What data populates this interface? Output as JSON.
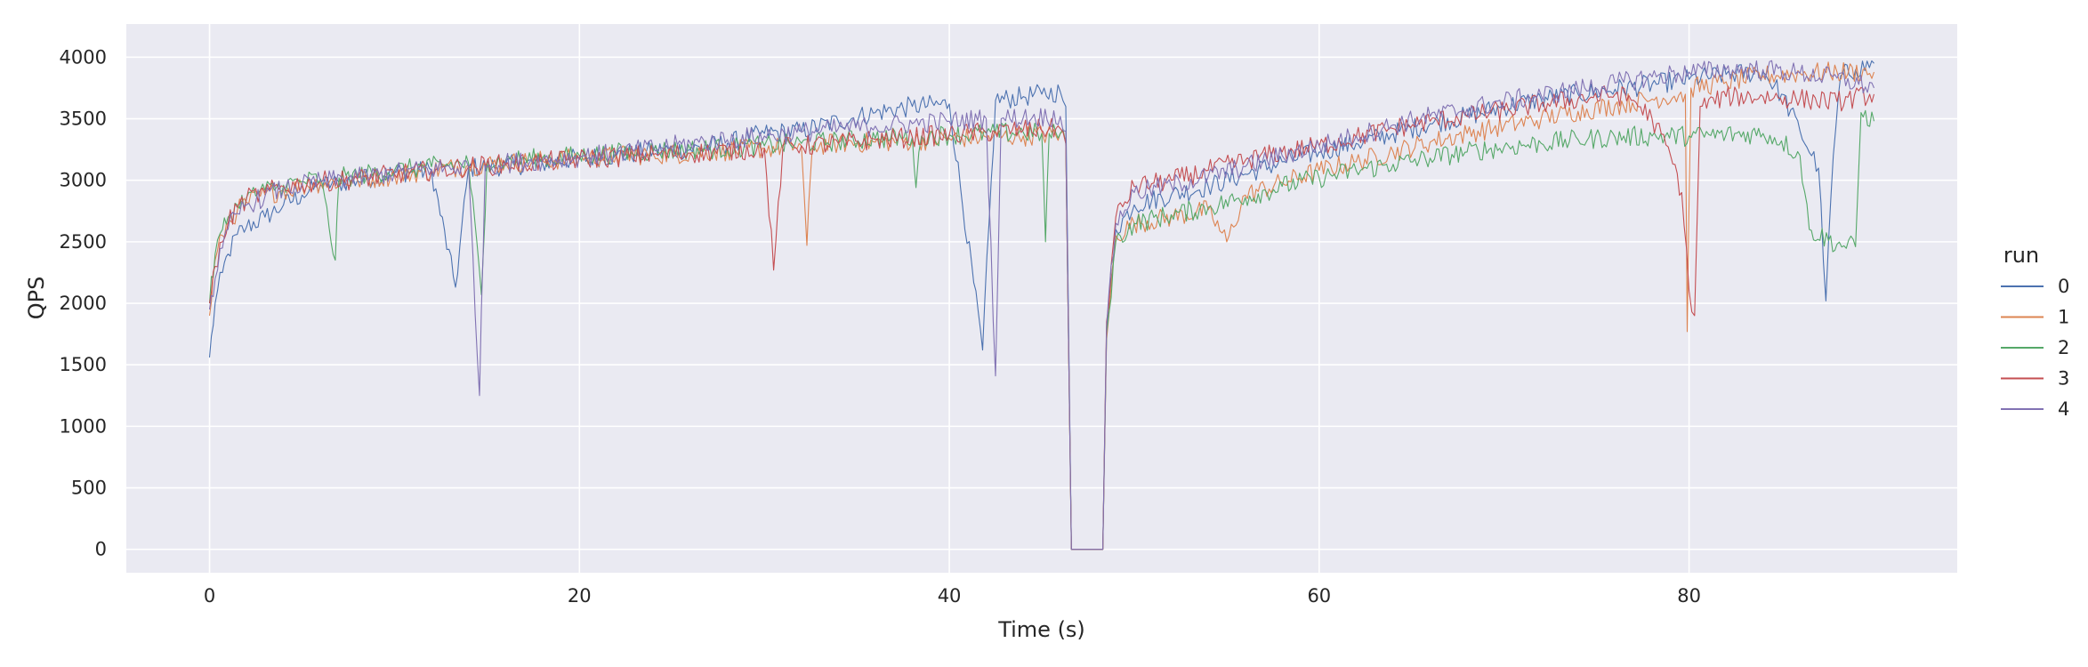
{
  "chart_data": {
    "type": "line",
    "xlabel": "Time (s)",
    "ylabel": "QPS",
    "xlim": [
      -4.5,
      94.5
    ],
    "ylim": [
      -190,
      4270
    ],
    "xticks": [
      0,
      20,
      40,
      60,
      80
    ],
    "yticks": [
      0,
      500,
      1000,
      1500,
      2000,
      2500,
      3000,
      3500,
      4000
    ],
    "grid": true,
    "background": "#eaeaf2",
    "legend": {
      "title": "run",
      "placement": "right"
    },
    "series": [
      {
        "name": "0",
        "color": "#4c72b0",
        "points": [
          [
            0,
            1560
          ],
          [
            0.3,
            2000
          ],
          [
            0.7,
            2250
          ],
          [
            1,
            2400
          ],
          [
            1.5,
            2560
          ],
          [
            2,
            2620
          ],
          [
            3,
            2700
          ],
          [
            4,
            2800
          ],
          [
            5,
            2880
          ],
          [
            6,
            2960
          ],
          [
            7,
            2980
          ],
          [
            8,
            3000
          ],
          [
            10,
            3060
          ],
          [
            12,
            3080
          ],
          [
            13.3,
            2130
          ],
          [
            14,
            3100
          ],
          [
            16,
            3120
          ],
          [
            18,
            3140
          ],
          [
            20,
            3180
          ],
          [
            22,
            3200
          ],
          [
            24,
            3240
          ],
          [
            26,
            3250
          ],
          [
            28,
            3300
          ],
          [
            30,
            3380
          ],
          [
            32,
            3400
          ],
          [
            34,
            3480
          ],
          [
            36,
            3550
          ],
          [
            38,
            3600
          ],
          [
            40,
            3620
          ],
          [
            41.8,
            1620
          ],
          [
            42.5,
            3650
          ],
          [
            44,
            3680
          ],
          [
            45,
            3700
          ],
          [
            46,
            3720
          ],
          [
            46.3,
            3600
          ],
          [
            46.6,
            0
          ],
          [
            48.3,
            0
          ],
          [
            48.5,
            1750
          ],
          [
            49,
            2600
          ],
          [
            50,
            2800
          ],
          [
            52,
            2880
          ],
          [
            54,
            2950
          ],
          [
            56,
            3050
          ],
          [
            58,
            3150
          ],
          [
            60,
            3230
          ],
          [
            62,
            3300
          ],
          [
            64,
            3380
          ],
          [
            66,
            3460
          ],
          [
            68,
            3520
          ],
          [
            70,
            3600
          ],
          [
            72,
            3660
          ],
          [
            74,
            3700
          ],
          [
            76,
            3740
          ],
          [
            78,
            3780
          ],
          [
            80,
            3820
          ],
          [
            82,
            3860
          ],
          [
            84,
            3880
          ],
          [
            85,
            3700
          ],
          [
            86,
            3400
          ],
          [
            87,
            3100
          ],
          [
            87.4,
            2020
          ],
          [
            87.8,
            3200
          ],
          [
            88.2,
            3850
          ],
          [
            89,
            3900
          ],
          [
            90,
            3950
          ]
        ]
      },
      {
        "name": "1",
        "color": "#dd8452",
        "points": [
          [
            0,
            1900
          ],
          [
            0.3,
            2350
          ],
          [
            0.7,
            2550
          ],
          [
            1,
            2650
          ],
          [
            1.5,
            2750
          ],
          [
            2,
            2820
          ],
          [
            3,
            2880
          ],
          [
            4,
            2920
          ],
          [
            5,
            2950
          ],
          [
            6,
            2980
          ],
          [
            8,
            3000
          ],
          [
            10,
            3040
          ],
          [
            12,
            3080
          ],
          [
            14,
            3120
          ],
          [
            16,
            3140
          ],
          [
            18,
            3160
          ],
          [
            20,
            3180
          ],
          [
            22,
            3200
          ],
          [
            24,
            3210
          ],
          [
            26,
            3220
          ],
          [
            28,
            3240
          ],
          [
            30,
            3260
          ],
          [
            32,
            3280
          ],
          [
            32.3,
            2470
          ],
          [
            32.6,
            3280
          ],
          [
            34,
            3300
          ],
          [
            36,
            3310
          ],
          [
            38,
            3320
          ],
          [
            40,
            3340
          ],
          [
            42,
            3350
          ],
          [
            44,
            3360
          ],
          [
            46,
            3380
          ],
          [
            46.3,
            3300
          ],
          [
            46.6,
            0
          ],
          [
            48.3,
            0
          ],
          [
            48.5,
            1700
          ],
          [
            49,
            2550
          ],
          [
            50,
            2650
          ],
          [
            52,
            2700
          ],
          [
            54,
            2760
          ],
          [
            55,
            2500
          ],
          [
            56,
            2880
          ],
          [
            58,
            2980
          ],
          [
            60,
            3080
          ],
          [
            62,
            3150
          ],
          [
            64,
            3230
          ],
          [
            66,
            3310
          ],
          [
            68,
            3380
          ],
          [
            70,
            3440
          ],
          [
            72,
            3500
          ],
          [
            74,
            3560
          ],
          [
            76,
            3610
          ],
          [
            78,
            3660
          ],
          [
            79.8,
            3700
          ],
          [
            79.9,
            1770
          ],
          [
            80.1,
            3750
          ],
          [
            82,
            3800
          ],
          [
            84,
            3850
          ],
          [
            86,
            3870
          ],
          [
            88,
            3880
          ],
          [
            90,
            3880
          ]
        ]
      },
      {
        "name": "2",
        "color": "#55a868",
        "points": [
          [
            0,
            2000
          ],
          [
            0.3,
            2400
          ],
          [
            0.7,
            2600
          ],
          [
            1,
            2700
          ],
          [
            1.5,
            2800
          ],
          [
            2,
            2860
          ],
          [
            3,
            2920
          ],
          [
            4,
            2960
          ],
          [
            5,
            2990
          ],
          [
            6,
            3010
          ],
          [
            6.8,
            2350
          ],
          [
            7,
            3020
          ],
          [
            8,
            3040
          ],
          [
            10,
            3080
          ],
          [
            12,
            3110
          ],
          [
            14,
            3140
          ],
          [
            14.7,
            2070
          ],
          [
            15,
            3150
          ],
          [
            16,
            3160
          ],
          [
            18,
            3180
          ],
          [
            20,
            3200
          ],
          [
            22,
            3220
          ],
          [
            24,
            3240
          ],
          [
            26,
            3250
          ],
          [
            28,
            3260
          ],
          [
            30,
            3280
          ],
          [
            32,
            3300
          ],
          [
            34,
            3320
          ],
          [
            36,
            3340
          ],
          [
            38,
            3350
          ],
          [
            38.2,
            2940
          ],
          [
            38.5,
            3360
          ],
          [
            40,
            3370
          ],
          [
            42,
            3380
          ],
          [
            44,
            3390
          ],
          [
            45,
            3380
          ],
          [
            45.2,
            2500
          ],
          [
            45.4,
            3380
          ],
          [
            46,
            3380
          ],
          [
            46.3,
            3300
          ],
          [
            46.6,
            0
          ],
          [
            48.3,
            0
          ],
          [
            48.5,
            1750
          ],
          [
            49,
            2500
          ],
          [
            50,
            2650
          ],
          [
            52,
            2720
          ],
          [
            54,
            2780
          ],
          [
            56,
            2860
          ],
          [
            58,
            2950
          ],
          [
            60,
            3020
          ],
          [
            62,
            3080
          ],
          [
            64,
            3130
          ],
          [
            66,
            3180
          ],
          [
            68,
            3230
          ],
          [
            70,
            3270
          ],
          [
            72,
            3300
          ],
          [
            74,
            3330
          ],
          [
            76,
            3350
          ],
          [
            78,
            3360
          ],
          [
            80,
            3360
          ],
          [
            82,
            3370
          ],
          [
            84,
            3380
          ],
          [
            85,
            3320
          ],
          [
            86,
            3200
          ],
          [
            86.5,
            2600
          ],
          [
            88,
            2480
          ],
          [
            89,
            2460
          ],
          [
            89.3,
            3550
          ],
          [
            90,
            3480
          ]
        ]
      },
      {
        "name": "3",
        "color": "#c44e52",
        "points": [
          [
            0,
            2000
          ],
          [
            0.3,
            2300
          ],
          [
            0.7,
            2500
          ],
          [
            1,
            2650
          ],
          [
            1.5,
            2780
          ],
          [
            2,
            2850
          ],
          [
            3,
            2900
          ],
          [
            4,
            2950
          ],
          [
            5,
            2970
          ],
          [
            6,
            2990
          ],
          [
            8,
            3010
          ],
          [
            10,
            3050
          ],
          [
            12,
            3080
          ],
          [
            14,
            3110
          ],
          [
            16,
            3130
          ],
          [
            18,
            3150
          ],
          [
            20,
            3170
          ],
          [
            22,
            3190
          ],
          [
            24,
            3210
          ],
          [
            26,
            3220
          ],
          [
            28,
            3240
          ],
          [
            30,
            3260
          ],
          [
            30.5,
            2270
          ],
          [
            31,
            3270
          ],
          [
            32,
            3280
          ],
          [
            34,
            3300
          ],
          [
            36,
            3330
          ],
          [
            38,
            3350
          ],
          [
            40,
            3370
          ],
          [
            42,
            3390
          ],
          [
            44,
            3410
          ],
          [
            46,
            3420
          ],
          [
            46.3,
            3300
          ],
          [
            46.6,
            0
          ],
          [
            48.3,
            0
          ],
          [
            48.5,
            1850
          ],
          [
            49,
            2700
          ],
          [
            50,
            2950
          ],
          [
            52,
            3000
          ],
          [
            54,
            3080
          ],
          [
            56,
            3160
          ],
          [
            58,
            3230
          ],
          [
            60,
            3280
          ],
          [
            62,
            3350
          ],
          [
            64,
            3420
          ],
          [
            66,
            3480
          ],
          [
            68,
            3520
          ],
          [
            70,
            3570
          ],
          [
            72,
            3620
          ],
          [
            74,
            3660
          ],
          [
            76,
            3700
          ],
          [
            77,
            3650
          ],
          [
            78,
            3500
          ],
          [
            79,
            3200
          ],
          [
            79.6,
            2900
          ],
          [
            80,
            2100
          ],
          [
            80.3,
            1900
          ],
          [
            80.6,
            3600
          ],
          [
            82,
            3680
          ],
          [
            84,
            3680
          ],
          [
            86,
            3660
          ],
          [
            88,
            3640
          ],
          [
            90,
            3700
          ]
        ]
      },
      {
        "name": "4",
        "color": "#8172b3",
        "points": [
          [
            0,
            1950
          ],
          [
            0.3,
            2200
          ],
          [
            0.7,
            2450
          ],
          [
            1,
            2600
          ],
          [
            1.5,
            2730
          ],
          [
            2,
            2800
          ],
          [
            3,
            2870
          ],
          [
            4,
            2930
          ],
          [
            5,
            2960
          ],
          [
            6,
            2990
          ],
          [
            8,
            3020
          ],
          [
            10,
            3060
          ],
          [
            12,
            3090
          ],
          [
            14,
            3110
          ],
          [
            14.6,
            1250
          ],
          [
            14.9,
            3120
          ],
          [
            16,
            3140
          ],
          [
            18,
            3160
          ],
          [
            20,
            3190
          ],
          [
            22,
            3220
          ],
          [
            24,
            3260
          ],
          [
            26,
            3300
          ],
          [
            28,
            3330
          ],
          [
            30,
            3360
          ],
          [
            32,
            3390
          ],
          [
            34,
            3420
          ],
          [
            36,
            3440
          ],
          [
            38,
            3460
          ],
          [
            40,
            3480
          ],
          [
            42,
            3500
          ],
          [
            42.5,
            1410
          ],
          [
            42.8,
            3500
          ],
          [
            44,
            3510
          ],
          [
            46,
            3520
          ],
          [
            46.3,
            3400
          ],
          [
            46.6,
            0
          ],
          [
            48.3,
            0
          ],
          [
            48.5,
            1800
          ],
          [
            49,
            2650
          ],
          [
            50,
            2900
          ],
          [
            52,
            2960
          ],
          [
            54,
            3030
          ],
          [
            56,
            3110
          ],
          [
            58,
            3200
          ],
          [
            60,
            3280
          ],
          [
            62,
            3360
          ],
          [
            64,
            3450
          ],
          [
            66,
            3520
          ],
          [
            68,
            3580
          ],
          [
            70,
            3640
          ],
          [
            72,
            3690
          ],
          [
            74,
            3740
          ],
          [
            76,
            3790
          ],
          [
            78,
            3840
          ],
          [
            80,
            3880
          ],
          [
            82,
            3900
          ],
          [
            84,
            3900
          ],
          [
            86,
            3870
          ],
          [
            88,
            3830
          ],
          [
            90,
            3750
          ]
        ]
      }
    ]
  }
}
